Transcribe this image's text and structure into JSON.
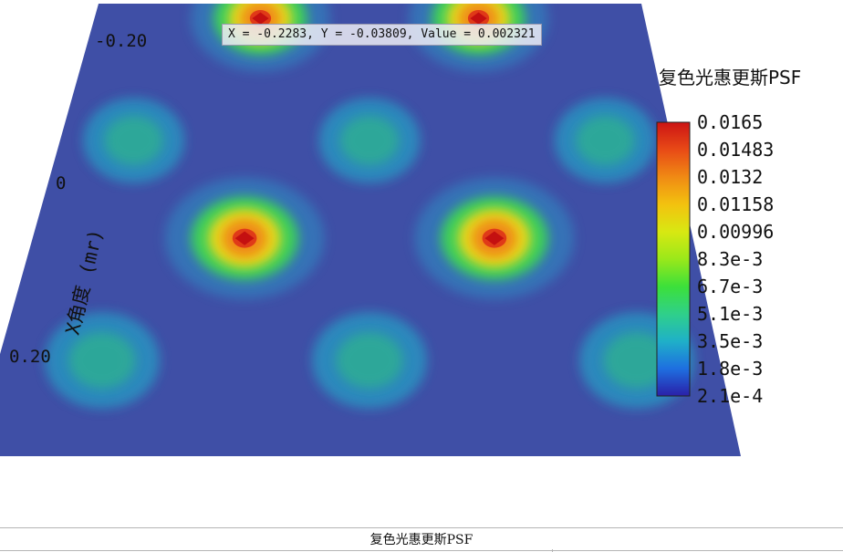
{
  "chart_data": {
    "type": "heatmap",
    "title": "复色光惠更斯PSF",
    "ylabel": "X角度 (mr)",
    "axis_ticks": [
      "-0.20",
      "0",
      "0.20"
    ],
    "colorbar": {
      "title": "复色光惠更斯PSF",
      "ticks": [
        "0.0165",
        "0.01483",
        "0.0132",
        "0.01158",
        "0.00996",
        "8.3e-3",
        "6.7e-3",
        "5.1e-3",
        "3.5e-3",
        "1.8e-3",
        "2.1e-4"
      ],
      "min": 0.00021,
      "max": 0.0165,
      "colors": [
        "#2a1fa8",
        "#1e6fe0",
        "#1fb0c8",
        "#2fd08a",
        "#3ce03a",
        "#9ae81a",
        "#d8e812",
        "#f3c20f",
        "#f08a14",
        "#e84a16",
        "#cc1414"
      ]
    },
    "peaks": [
      {
        "x": -0.12,
        "y": -0.22,
        "value": 0.0165
      },
      {
        "x": 0.12,
        "y": -0.22,
        "value": 0.0165
      },
      {
        "x": -0.12,
        "y": 0.05,
        "value": 0.0165
      },
      {
        "x": 0.12,
        "y": 0.05,
        "value": 0.0165
      }
    ],
    "secondary_lobes": [
      {
        "x": -0.24,
        "y": -0.07,
        "value": 0.0045
      },
      {
        "x": 0.0,
        "y": -0.07,
        "value": 0.0042
      },
      {
        "x": 0.24,
        "y": -0.07,
        "value": 0.0045
      },
      {
        "x": -0.24,
        "y": 0.2,
        "value": 0.0045
      },
      {
        "x": 0.0,
        "y": 0.2,
        "value": 0.0045
      },
      {
        "x": 0.24,
        "y": 0.2,
        "value": 0.0045
      }
    ]
  },
  "readout": "X = -0.2283, Y = -0.03809, Value = 0.002321",
  "bottom_bar": {
    "title": "复色光惠更斯PSF"
  }
}
